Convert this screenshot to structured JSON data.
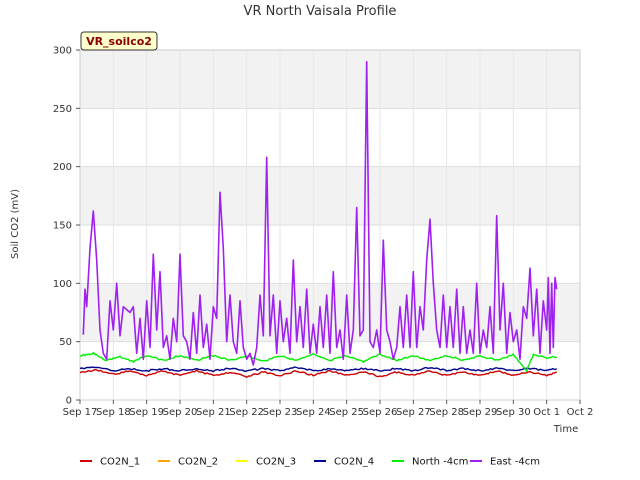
{
  "chart_data": {
    "type": "line",
    "title": "VR North Vaisala Profile",
    "xlabel": "Time",
    "ylabel": "Soil CO2 (mV)",
    "ylim": [
      0,
      300
    ],
    "yticks": [
      0,
      50,
      100,
      150,
      200,
      250,
      300
    ],
    "x_tick_labels": [
      "Sep 17",
      "Sep 18",
      "Sep 19",
      "Sep 20",
      "Sep 21",
      "Sep 22",
      "Sep 23",
      "Sep 24",
      "Sep 25",
      "Sep 26",
      "Sep 27",
      "Sep 28",
      "Sep 29",
      "Sep 30",
      "Oct 1",
      "Oct 2"
    ],
    "xlim_days": [
      0,
      15
    ],
    "data_end_day": 14.3,
    "badge": "VR_soilco2",
    "grid": true,
    "legend_position": "bottom",
    "series": [
      {
        "name": "CO2N_1",
        "color": "#cc0000",
        "style": "diurnal",
        "base": 23,
        "amp": 2.5,
        "points": [
          [
            0,
            24
          ],
          [
            0.5,
            26
          ],
          [
            1,
            22
          ],
          [
            1.5,
            25
          ],
          [
            2,
            21
          ],
          [
            2.5,
            25
          ],
          [
            3,
            21
          ],
          [
            3.5,
            25
          ],
          [
            4,
            21
          ],
          [
            4.5,
            24
          ],
          [
            5,
            20
          ],
          [
            5.5,
            24
          ],
          [
            6,
            21
          ],
          [
            6.5,
            25
          ],
          [
            7,
            21
          ],
          [
            7.5,
            25
          ],
          [
            8,
            21
          ],
          [
            8.5,
            24
          ],
          [
            9,
            20
          ],
          [
            9.5,
            24
          ],
          [
            10,
            21
          ],
          [
            10.5,
            25
          ],
          [
            11,
            21
          ],
          [
            11.5,
            24
          ],
          [
            12,
            21
          ],
          [
            12.5,
            25
          ],
          [
            13,
            21
          ],
          [
            13.5,
            24
          ],
          [
            14,
            21
          ],
          [
            14.3,
            24
          ]
        ]
      },
      {
        "name": "CO2N_2",
        "color": "#ffa500",
        "style": "none",
        "points": []
      },
      {
        "name": "CO2N_3",
        "color": "#ffff00",
        "style": "none",
        "points": []
      },
      {
        "name": "CO2N_4",
        "color": "#00008b",
        "style": "diurnal",
        "base": 26.5,
        "amp": 1.5,
        "points": [
          [
            0,
            27
          ],
          [
            0.5,
            28
          ],
          [
            1,
            25
          ],
          [
            1.5,
            27
          ],
          [
            2,
            25
          ],
          [
            2.5,
            27
          ],
          [
            3,
            25
          ],
          [
            3.5,
            27
          ],
          [
            4,
            25
          ],
          [
            4.5,
            27
          ],
          [
            5,
            25
          ],
          [
            5.5,
            27
          ],
          [
            6,
            25
          ],
          [
            6.5,
            28
          ],
          [
            7,
            25
          ],
          [
            7.5,
            27
          ],
          [
            8,
            25
          ],
          [
            8.5,
            27
          ],
          [
            9,
            25
          ],
          [
            9.5,
            27
          ],
          [
            10,
            25
          ],
          [
            10.5,
            28
          ],
          [
            11,
            25
          ],
          [
            11.5,
            27
          ],
          [
            12,
            25
          ],
          [
            12.5,
            27
          ],
          [
            13,
            25
          ],
          [
            13.5,
            27
          ],
          [
            14,
            25
          ],
          [
            14.3,
            27
          ]
        ]
      },
      {
        "name": "North -4cm",
        "color": "#00ee00",
        "style": "diurnal",
        "base": 36.5,
        "amp": 2.5,
        "points": [
          [
            0,
            38
          ],
          [
            0.4,
            40
          ],
          [
            0.8,
            34
          ],
          [
            1.2,
            37
          ],
          [
            1.6,
            33
          ],
          [
            2,
            38
          ],
          [
            2.5,
            34
          ],
          [
            3,
            38
          ],
          [
            3.5,
            34
          ],
          [
            4,
            38
          ],
          [
            4.5,
            34
          ],
          [
            5,
            38
          ],
          [
            5.5,
            33
          ],
          [
            6,
            38
          ],
          [
            6.5,
            34
          ],
          [
            7,
            39
          ],
          [
            7.5,
            34
          ],
          [
            8,
            38
          ],
          [
            8.5,
            33
          ],
          [
            9,
            39
          ],
          [
            9.5,
            34
          ],
          [
            10,
            38
          ],
          [
            10.5,
            34
          ],
          [
            11,
            38
          ],
          [
            11.5,
            34
          ],
          [
            12,
            38
          ],
          [
            12.5,
            34
          ],
          [
            13,
            39
          ],
          [
            13.4,
            25
          ],
          [
            13.6,
            39
          ],
          [
            14,
            36
          ],
          [
            14.3,
            37
          ]
        ]
      },
      {
        "name": "East -4cm",
        "color": "#a020f0",
        "style": "line",
        "points": [
          [
            0.1,
            56
          ],
          [
            0.15,
            95
          ],
          [
            0.2,
            80
          ],
          [
            0.3,
            130
          ],
          [
            0.4,
            162
          ],
          [
            0.5,
            120
          ],
          [
            0.6,
            60
          ],
          [
            0.7,
            40
          ],
          [
            0.8,
            35
          ],
          [
            0.9,
            85
          ],
          [
            1.0,
            60
          ],
          [
            1.1,
            100
          ],
          [
            1.2,
            55
          ],
          [
            1.3,
            80
          ],
          [
            1.5,
            75
          ],
          [
            1.6,
            80
          ],
          [
            1.7,
            40
          ],
          [
            1.8,
            70
          ],
          [
            1.9,
            35
          ],
          [
            2.0,
            85
          ],
          [
            2.1,
            45
          ],
          [
            2.2,
            125
          ],
          [
            2.3,
            60
          ],
          [
            2.4,
            110
          ],
          [
            2.5,
            45
          ],
          [
            2.6,
            55
          ],
          [
            2.7,
            35
          ],
          [
            2.8,
            70
          ],
          [
            2.9,
            50
          ],
          [
            3.0,
            125
          ],
          [
            3.1,
            55
          ],
          [
            3.2,
            50
          ],
          [
            3.3,
            35
          ],
          [
            3.4,
            75
          ],
          [
            3.5,
            40
          ],
          [
            3.6,
            90
          ],
          [
            3.7,
            45
          ],
          [
            3.8,
            65
          ],
          [
            3.9,
            35
          ],
          [
            4.0,
            80
          ],
          [
            4.1,
            70
          ],
          [
            4.2,
            178
          ],
          [
            4.3,
            130
          ],
          [
            4.4,
            50
          ],
          [
            4.5,
            90
          ],
          [
            4.6,
            50
          ],
          [
            4.7,
            40
          ],
          [
            4.8,
            85
          ],
          [
            4.9,
            45
          ],
          [
            5.0,
            35
          ],
          [
            5.1,
            40
          ],
          [
            5.2,
            30
          ],
          [
            5.3,
            45
          ],
          [
            5.4,
            90
          ],
          [
            5.5,
            55
          ],
          [
            5.6,
            208
          ],
          [
            5.7,
            55
          ],
          [
            5.8,
            90
          ],
          [
            5.9,
            40
          ],
          [
            6.0,
            85
          ],
          [
            6.1,
            50
          ],
          [
            6.2,
            70
          ],
          [
            6.3,
            40
          ],
          [
            6.4,
            120
          ],
          [
            6.5,
            50
          ],
          [
            6.6,
            80
          ],
          [
            6.7,
            45
          ],
          [
            6.8,
            95
          ],
          [
            6.9,
            40
          ],
          [
            7.0,
            65
          ],
          [
            7.1,
            40
          ],
          [
            7.2,
            80
          ],
          [
            7.3,
            45
          ],
          [
            7.4,
            90
          ],
          [
            7.5,
            40
          ],
          [
            7.6,
            110
          ],
          [
            7.7,
            45
          ],
          [
            7.8,
            60
          ],
          [
            7.9,
            35
          ],
          [
            8.0,
            90
          ],
          [
            8.1,
            40
          ],
          [
            8.2,
            60
          ],
          [
            8.3,
            165
          ],
          [
            8.4,
            55
          ],
          [
            8.5,
            60
          ],
          [
            8.6,
            290
          ],
          [
            8.7,
            50
          ],
          [
            8.8,
            45
          ],
          [
            8.9,
            60
          ],
          [
            9.0,
            40
          ],
          [
            9.1,
            137
          ],
          [
            9.2,
            60
          ],
          [
            9.3,
            50
          ],
          [
            9.4,
            35
          ],
          [
            9.5,
            45
          ],
          [
            9.6,
            80
          ],
          [
            9.7,
            45
          ],
          [
            9.8,
            90
          ],
          [
            9.9,
            45
          ],
          [
            10.0,
            110
          ],
          [
            10.1,
            45
          ],
          [
            10.2,
            80
          ],
          [
            10.3,
            60
          ],
          [
            10.4,
            120
          ],
          [
            10.5,
            155
          ],
          [
            10.6,
            100
          ],
          [
            10.7,
            60
          ],
          [
            10.8,
            45
          ],
          [
            10.9,
            90
          ],
          [
            11.0,
            45
          ],
          [
            11.1,
            80
          ],
          [
            11.2,
            45
          ],
          [
            11.3,
            95
          ],
          [
            11.4,
            40
          ],
          [
            11.5,
            80
          ],
          [
            11.6,
            40
          ],
          [
            11.7,
            60
          ],
          [
            11.8,
            40
          ],
          [
            11.9,
            100
          ],
          [
            12.0,
            40
          ],
          [
            12.1,
            60
          ],
          [
            12.2,
            45
          ],
          [
            12.3,
            80
          ],
          [
            12.4,
            40
          ],
          [
            12.5,
            158
          ],
          [
            12.6,
            60
          ],
          [
            12.7,
            100
          ],
          [
            12.8,
            40
          ],
          [
            12.9,
            75
          ],
          [
            13.0,
            50
          ],
          [
            13.1,
            60
          ],
          [
            13.2,
            35
          ],
          [
            13.3,
            80
          ],
          [
            13.4,
            70
          ],
          [
            13.5,
            113
          ],
          [
            13.6,
            55
          ],
          [
            13.7,
            95
          ],
          [
            13.8,
            40
          ],
          [
            13.9,
            85
          ],
          [
            14.0,
            60
          ],
          [
            14.05,
            105
          ],
          [
            14.1,
            40
          ],
          [
            14.15,
            100
          ],
          [
            14.2,
            45
          ],
          [
            14.25,
            105
          ],
          [
            14.3,
            95
          ]
        ]
      }
    ]
  }
}
